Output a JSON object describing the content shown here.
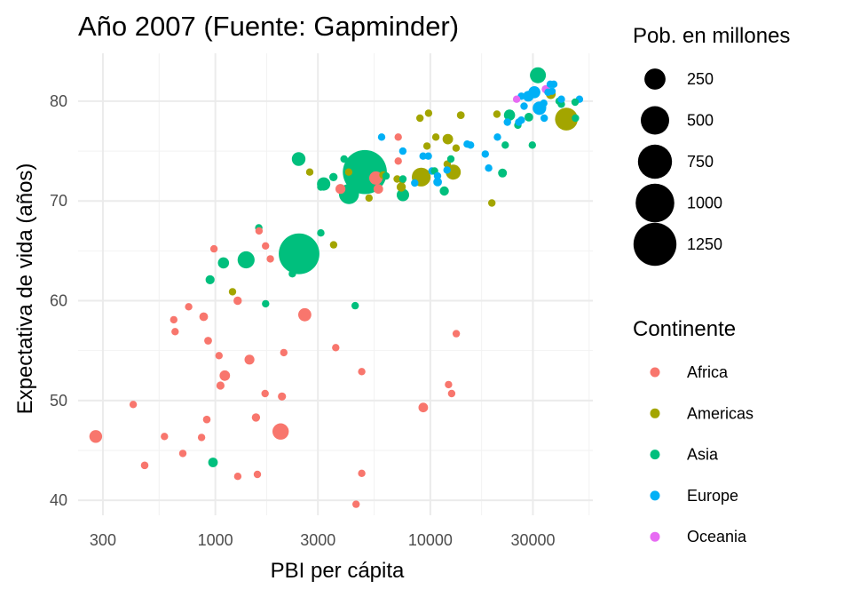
{
  "chart_data": {
    "type": "scatter",
    "title": "Año 2007 (Fuente: Gapminder)",
    "xlabel": "PBI per cápita",
    "ylabel": "Expectativa de vida (años)",
    "x_scale": "log10",
    "xlim": [
      230,
      57000
    ],
    "ylim": [
      38.5,
      84.8
    ],
    "x_ticks": [
      300,
      1000,
      3000,
      10000,
      30000
    ],
    "x_tick_labels": [
      "300",
      "1000",
      "3000",
      "10000",
      "30000"
    ],
    "y_ticks": [
      40,
      50,
      60,
      70,
      80
    ],
    "y_tick_labels": [
      "40",
      "50",
      "60",
      "70",
      "80"
    ],
    "grid": true,
    "size_legend": {
      "title": "Pob. en millones",
      "entries": [
        {
          "label": "250",
          "value": 250
        },
        {
          "label": "500",
          "value": 500
        },
        {
          "label": "750",
          "value": 750
        },
        {
          "label": "1000",
          "value": 1000
        },
        {
          "label": "1250",
          "value": 1250
        }
      ]
    },
    "color_legend": {
      "title": "Continente",
      "entries": [
        {
          "label": "Africa",
          "color": "#F8766D"
        },
        {
          "label": "Americas",
          "color": "#A3A500"
        },
        {
          "label": "Asia",
          "color": "#00BF7D"
        },
        {
          "label": "Europe",
          "color": "#00B0F6"
        },
        {
          "label": "Oceania",
          "color": "#E76BF3"
        }
      ]
    },
    "series": [
      {
        "continent": "Africa",
        "color": "#F8766D",
        "points": [
          [
            278,
            46.4,
            70
          ],
          [
            415,
            49.6,
            5
          ],
          [
            469,
            43.5,
            15
          ],
          [
            580,
            46.4,
            4
          ],
          [
            641,
            58.1,
            10
          ],
          [
            706,
            44.7,
            12
          ],
          [
            752,
            59.4,
            9
          ],
          [
            863,
            46.3,
            8
          ],
          [
            883,
            58.4,
            22
          ],
          [
            913,
            48.1,
            14
          ],
          [
            1040,
            54.5,
            10
          ],
          [
            1056,
            51.5,
            19
          ],
          [
            1107,
            52.5,
            40
          ],
          [
            1271,
            42.4,
            9
          ],
          [
            1441,
            54.1,
            35
          ],
          [
            1545,
            48.3,
            20
          ],
          [
            1704,
            50.7,
            10
          ],
          [
            1803,
            64.2,
            7
          ],
          [
            1569,
            42.6,
            5
          ],
          [
            2042,
            50.4,
            18
          ],
          [
            2082,
            54.8,
            4
          ],
          [
            2013,
            46.9,
            135
          ],
          [
            2605,
            58.6,
            75
          ],
          [
            3632,
            55.3,
            10
          ],
          [
            4797,
            52.9,
            2
          ],
          [
            4797,
            42.7,
            10
          ],
          [
            4513,
            39.6,
            12
          ],
          [
            9270,
            49.3,
            30
          ],
          [
            12154,
            51.6,
            1
          ],
          [
            12570,
            50.7,
            1
          ],
          [
            13206,
            56.7,
            1
          ],
          [
            7093,
            76.4,
            1
          ],
          [
            7092,
            74.0,
            10
          ],
          [
            5581,
            72.3,
            80
          ],
          [
            5728,
            71.2,
            30
          ],
          [
            3820,
            71.2,
            34
          ],
          [
            1712,
            65.5,
            1
          ],
          [
            986,
            65.2,
            1
          ],
          [
            1598,
            67.0,
            1
          ],
          [
            650,
            56.9,
            13
          ],
          [
            1270,
            60.0,
            20
          ],
          [
            926,
            56.0,
            16
          ]
        ]
      },
      {
        "continent": "Americas",
        "color": "#A3A500",
        "points": [
          [
            1202,
            60.9,
            9
          ],
          [
            3548,
            65.6,
            9
          ],
          [
            2749,
            72.9,
            1
          ],
          [
            4172,
            72.9,
            3
          ],
          [
            5186,
            70.3,
            7
          ],
          [
            6025,
            72.6,
            14
          ],
          [
            7409,
            72.1,
            6
          ],
          [
            7008,
            72.2,
            6
          ],
          [
            9066,
            72.4,
            190
          ],
          [
            12779,
            72.9,
            110
          ],
          [
            11977,
            73.7,
            5
          ],
          [
            13172,
            75.3,
            3
          ],
          [
            12057,
            76.2,
            40
          ],
          [
            9645,
            75.5,
            11
          ],
          [
            10611,
            76.4,
            1
          ],
          [
            7321,
            71.4,
            28
          ],
          [
            8948,
            78.3,
            4
          ],
          [
            9809,
            78.8,
            4
          ],
          [
            13858,
            78.6,
            16
          ],
          [
            19329,
            69.8,
            1
          ],
          [
            20400,
            78.7,
            1
          ],
          [
            36319,
            80.7,
            33
          ],
          [
            42951,
            78.2,
            301
          ]
        ]
      },
      {
        "continent": "Asia",
        "color": "#00BF7D",
        "points": [
          [
            975,
            43.8,
            31
          ],
          [
            945,
            62.1,
            26
          ],
          [
            1091,
            63.8,
            48
          ],
          [
            1391,
            64.1,
            150
          ],
          [
            1593,
            67.3,
            10
          ],
          [
            1714,
            59.7,
            6
          ],
          [
            2452,
            64.7,
            1110
          ],
          [
            2281,
            62.7,
            8
          ],
          [
            3096,
            66.8,
            1
          ],
          [
            3095,
            71.4,
            3
          ],
          [
            3190,
            71.7,
            80
          ],
          [
            4471,
            59.5,
            2
          ],
          [
            3541,
            72.4,
            20
          ],
          [
            3970,
            74.2,
            10
          ],
          [
            2441,
            74.2,
            85
          ],
          [
            4959,
            72.9,
            1318
          ],
          [
            4185,
            70.7,
            223
          ],
          [
            7458,
            70.6,
            65
          ],
          [
            6223,
            72.5,
            3
          ],
          [
            12452,
            74.2,
            2
          ],
          [
            11606,
            71.0,
            27
          ],
          [
            10461,
            73.0,
            3
          ],
          [
            22316,
            75.6,
            1
          ],
          [
            21655,
            72.8,
            24
          ],
          [
            23349,
            78.6,
            49
          ],
          [
            25523,
            77.6,
            1
          ],
          [
            28718,
            78.4,
            22
          ],
          [
            39725,
            80.0,
            5
          ],
          [
            47307,
            78.3,
            4
          ],
          [
            31656,
            82.6,
            127
          ],
          [
            47143,
            79.9,
            4
          ],
          [
            29796,
            75.6,
            1
          ],
          [
            40676,
            79.7,
            8
          ],
          [
            7459,
            72.2,
            1
          ]
        ]
      },
      {
        "continent": "Europe",
        "color": "#00B0F6",
        "points": [
          [
            5937,
            76.4,
            4
          ],
          [
            7446,
            75.0,
            9
          ],
          [
            8458,
            71.8,
            10
          ],
          [
            9253,
            74.5,
            4
          ],
          [
            9786,
            74.5,
            4
          ],
          [
            10808,
            71.9,
            22
          ],
          [
            10180,
            73.0,
            7
          ],
          [
            10807,
            72.5,
            1
          ],
          [
            11960,
            73.1,
            1
          ],
          [
            14844,
            75.7,
            10
          ],
          [
            15390,
            75.6,
            1
          ],
          [
            18009,
            74.7,
            5
          ],
          [
            18678,
            73.3,
            2
          ],
          [
            20510,
            76.4,
            1
          ],
          [
            22833,
            77.9,
            1
          ],
          [
            25768,
            77.9,
            1
          ],
          [
            26505,
            78.1,
            10
          ],
          [
            27286,
            79.5,
            11
          ],
          [
            28570,
            80.5,
            45
          ],
          [
            30470,
            80.9,
            60
          ],
          [
            32170,
            79.3,
            82
          ],
          [
            33203,
            79.4,
            16
          ],
          [
            33693,
            79.8,
            10
          ],
          [
            36126,
            81.7,
            1
          ],
          [
            36798,
            81.0,
            9
          ],
          [
            37506,
            81.7,
            8
          ],
          [
            35278,
            80.9,
            5
          ],
          [
            40675,
            80.2,
            5
          ],
          [
            49357,
            80.2,
            5
          ],
          [
            26505,
            80.5,
            10
          ],
          [
            33860,
            78.3,
            1
          ]
        ]
      },
      {
        "continent": "Oceania",
        "color": "#E76BF3",
        "points": [
          [
            25185,
            80.2,
            4
          ],
          [
            34435,
            81.2,
            20
          ]
        ]
      }
    ]
  }
}
